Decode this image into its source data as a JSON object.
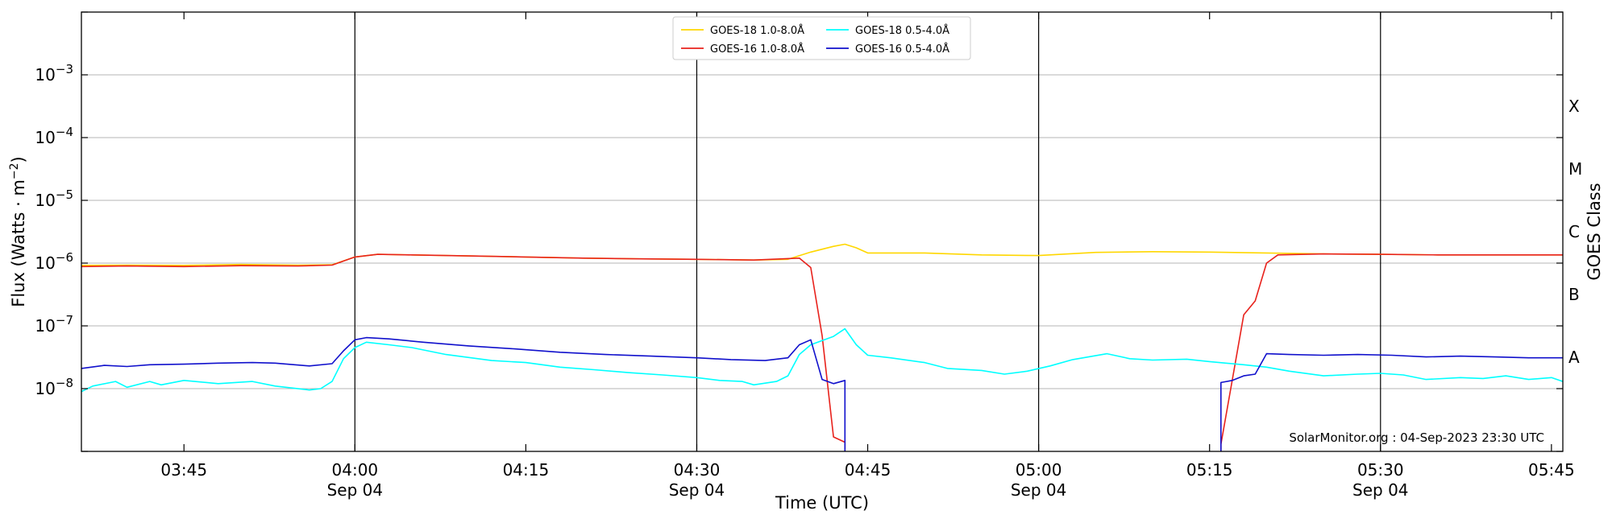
{
  "chart_data": {
    "type": "line",
    "xlabel": "Time (UTC)",
    "ylabel_main": "Flux (Watts · m",
    "ylabel_sup": "−2",
    "ylabel_close": ")",
    "right_label": "GOES Class",
    "credit": "SolarMonitor.org : 04-Sep-2023 23:30 UTC",
    "log_y": true,
    "grid": "horizontal at decades",
    "legend_position": "top-center",
    "x_range": [
      "03:36",
      "05:46"
    ],
    "y_range": [
      1e-09,
      0.01
    ],
    "x_ticks": [
      {
        "t": "03:45",
        "label": "03:45",
        "date": ""
      },
      {
        "t": "04:00",
        "label": "04:00",
        "date": "Sep 04"
      },
      {
        "t": "04:15",
        "label": "04:15",
        "date": ""
      },
      {
        "t": "04:30",
        "label": "04:30",
        "date": "Sep 04"
      },
      {
        "t": "04:45",
        "label": "04:45",
        "date": ""
      },
      {
        "t": "05:00",
        "label": "05:00",
        "date": "Sep 04"
      },
      {
        "t": "05:15",
        "label": "05:15",
        "date": ""
      },
      {
        "t": "05:30",
        "label": "05:30",
        "date": "Sep 04"
      },
      {
        "t": "05:45",
        "label": "05:45",
        "date": ""
      }
    ],
    "vertical_lines": [
      "04:00",
      "04:30",
      "05:00",
      "05:30"
    ],
    "y_ticks": [
      {
        "exp": -8,
        "label": "10",
        "sup": "−8"
      },
      {
        "exp": -7,
        "label": "10",
        "sup": "−7"
      },
      {
        "exp": -6,
        "label": "10",
        "sup": "−6"
      },
      {
        "exp": -5,
        "label": "10",
        "sup": "−5"
      },
      {
        "exp": -4,
        "label": "10",
        "sup": "−4"
      },
      {
        "exp": -3,
        "label": "10",
        "sup": "−3"
      }
    ],
    "classes": [
      {
        "label": "A",
        "exp": -7.5
      },
      {
        "label": "B",
        "exp": -6.5
      },
      {
        "label": "C",
        "exp": -5.5
      },
      {
        "label": "M",
        "exp": -4.5
      },
      {
        "label": "X",
        "exp": -3.5
      }
    ],
    "series": [
      {
        "name": "GOES-18 1.0-8.0Å",
        "color": "#ffd700",
        "points": [
          [
            "03:36",
            9.2e-07
          ],
          [
            "03:40",
            9.3e-07
          ],
          [
            "03:45",
            9.2e-07
          ],
          [
            "03:50",
            9.5e-07
          ],
          [
            "03:55",
            9.3e-07
          ],
          [
            "03:58",
            9.4e-07
          ],
          [
            "04:00",
            1.25e-06
          ],
          [
            "04:02",
            1.38e-06
          ],
          [
            "04:05",
            1.35e-06
          ],
          [
            "04:10",
            1.3e-06
          ],
          [
            "04:15",
            1.25e-06
          ],
          [
            "04:20",
            1.2e-06
          ],
          [
            "04:25",
            1.17e-06
          ],
          [
            "04:30",
            1.15e-06
          ],
          [
            "04:35",
            1.12e-06
          ],
          [
            "04:38",
            1.15e-06
          ],
          [
            "04:40",
            1.5e-06
          ],
          [
            "04:42",
            1.85e-06
          ],
          [
            "04:43",
            2e-06
          ],
          [
            "04:44",
            1.75e-06
          ],
          [
            "04:45",
            1.45e-06
          ],
          [
            "04:50",
            1.45e-06
          ],
          [
            "04:55",
            1.35e-06
          ],
          [
            "05:00",
            1.32e-06
          ],
          [
            "05:05",
            1.48e-06
          ],
          [
            "05:10",
            1.52e-06
          ],
          [
            "05:15",
            1.5e-06
          ],
          [
            "05:20",
            1.45e-06
          ],
          [
            "05:25",
            1.4e-06
          ],
          [
            "05:30",
            1.38e-06
          ],
          [
            "05:35",
            1.35e-06
          ],
          [
            "05:40",
            1.35e-06
          ],
          [
            "05:46",
            1.35e-06
          ]
        ]
      },
      {
        "name": "GOES-16 1.0-8.0Å",
        "color": "#e8221c",
        "points": [
          [
            "03:36",
            8.8e-07
          ],
          [
            "03:40",
            9e-07
          ],
          [
            "03:45",
            8.8e-07
          ],
          [
            "03:50",
            9.1e-07
          ],
          [
            "03:55",
            9e-07
          ],
          [
            "03:58",
            9.3e-07
          ],
          [
            "04:00",
            1.25e-06
          ],
          [
            "04:02",
            1.38e-06
          ],
          [
            "04:05",
            1.35e-06
          ],
          [
            "04:10",
            1.3e-06
          ],
          [
            "04:15",
            1.25e-06
          ],
          [
            "04:20",
            1.2e-06
          ],
          [
            "04:25",
            1.17e-06
          ],
          [
            "04:30",
            1.15e-06
          ],
          [
            "04:35",
            1.12e-06
          ],
          [
            "04:39",
            1.2e-06
          ],
          [
            "04:40",
            8.5e-07
          ],
          [
            "04:41",
            7e-08
          ],
          [
            "04:42",
            1.7e-09
          ],
          [
            "04:43",
            1.4e-09
          ],
          [
            "04:43",
            1e-09
          ],
          null,
          [
            "05:16",
            1e-09
          ],
          [
            "05:16",
            1.3e-09
          ],
          [
            "05:17",
            1.4e-08
          ],
          [
            "05:18",
            1.5e-07
          ],
          [
            "05:19",
            2.5e-07
          ],
          [
            "05:20",
            1e-06
          ],
          [
            "05:21",
            1.35e-06
          ],
          [
            "05:25",
            1.4e-06
          ],
          [
            "05:30",
            1.38e-06
          ],
          [
            "05:35",
            1.35e-06
          ],
          [
            "05:40",
            1.35e-06
          ],
          [
            "05:46",
            1.35e-06
          ]
        ]
      },
      {
        "name": "GOES-18 0.5-4.0Å",
        "color": "#00ffff",
        "points": [
          [
            "03:36",
            9e-09
          ],
          [
            "03:37",
            1.1e-08
          ],
          [
            "03:39",
            1.3e-08
          ],
          [
            "03:40",
            1.05e-08
          ],
          [
            "03:42",
            1.3e-08
          ],
          [
            "03:43",
            1.15e-08
          ],
          [
            "03:45",
            1.35e-08
          ],
          [
            "03:48",
            1.2e-08
          ],
          [
            "03:51",
            1.3e-08
          ],
          [
            "03:53",
            1.1e-08
          ],
          [
            "03:56",
            9.5e-09
          ],
          [
            "03:57",
            1e-08
          ],
          [
            "03:58",
            1.3e-08
          ],
          [
            "03:59",
            3e-08
          ],
          [
            "04:00",
            4.5e-08
          ],
          [
            "04:01",
            5.5e-08
          ],
          [
            "04:03",
            5e-08
          ],
          [
            "04:05",
            4.5e-08
          ],
          [
            "04:08",
            3.5e-08
          ],
          [
            "04:12",
            2.8e-08
          ],
          [
            "04:15",
            2.6e-08
          ],
          [
            "04:18",
            2.2e-08
          ],
          [
            "04:21",
            2e-08
          ],
          [
            "04:24",
            1.8e-08
          ],
          [
            "04:27",
            1.65e-08
          ],
          [
            "04:30",
            1.5e-08
          ],
          [
            "04:32",
            1.35e-08
          ],
          [
            "04:34",
            1.3e-08
          ],
          [
            "04:35",
            1.15e-08
          ],
          [
            "04:37",
            1.3e-08
          ],
          [
            "04:38",
            1.6e-08
          ],
          [
            "04:39",
            3.5e-08
          ],
          [
            "04:40",
            5e-08
          ],
          [
            "04:42",
            6.8e-08
          ],
          [
            "04:43",
            9e-08
          ],
          [
            "04:44",
            5e-08
          ],
          [
            "04:45",
            3.4e-08
          ],
          [
            "04:47",
            3.1e-08
          ],
          [
            "04:50",
            2.6e-08
          ],
          [
            "04:52",
            2.1e-08
          ],
          [
            "04:55",
            1.95e-08
          ],
          [
            "04:57",
            1.7e-08
          ],
          [
            "04:59",
            1.9e-08
          ],
          [
            "05:01",
            2.3e-08
          ],
          [
            "05:03",
            2.9e-08
          ],
          [
            "05:06",
            3.6e-08
          ],
          [
            "05:08",
            3e-08
          ],
          [
            "05:10",
            2.85e-08
          ],
          [
            "05:13",
            2.95e-08
          ],
          [
            "05:15",
            2.7e-08
          ],
          [
            "05:18",
            2.4e-08
          ],
          [
            "05:20",
            2.2e-08
          ],
          [
            "05:22",
            1.9e-08
          ],
          [
            "05:25",
            1.6e-08
          ],
          [
            "05:28",
            1.7e-08
          ],
          [
            "05:30",
            1.75e-08
          ],
          [
            "05:32",
            1.65e-08
          ],
          [
            "05:34",
            1.4e-08
          ],
          [
            "05:37",
            1.5e-08
          ],
          [
            "05:39",
            1.45e-08
          ],
          [
            "05:41",
            1.6e-08
          ],
          [
            "05:43",
            1.4e-08
          ],
          [
            "05:45",
            1.5e-08
          ],
          [
            "05:46",
            1.3e-08
          ]
        ]
      },
      {
        "name": "GOES-16 0.5-4.0Å",
        "color": "#1010cc",
        "points": [
          [
            "03:36",
            2.1e-08
          ],
          [
            "03:38",
            2.35e-08
          ],
          [
            "03:40",
            2.25e-08
          ],
          [
            "03:42",
            2.4e-08
          ],
          [
            "03:45",
            2.45e-08
          ],
          [
            "03:48",
            2.55e-08
          ],
          [
            "03:51",
            2.6e-08
          ],
          [
            "03:53",
            2.55e-08
          ],
          [
            "03:56",
            2.3e-08
          ],
          [
            "03:58",
            2.5e-08
          ],
          [
            "03:59",
            4e-08
          ],
          [
            "04:00",
            6e-08
          ],
          [
            "04:01",
            6.5e-08
          ],
          [
            "04:03",
            6.2e-08
          ],
          [
            "04:06",
            5.5e-08
          ],
          [
            "04:10",
            4.8e-08
          ],
          [
            "04:14",
            4.3e-08
          ],
          [
            "04:18",
            3.8e-08
          ],
          [
            "04:22",
            3.5e-08
          ],
          [
            "04:26",
            3.3e-08
          ],
          [
            "04:30",
            3.1e-08
          ],
          [
            "04:33",
            2.9e-08
          ],
          [
            "04:36",
            2.8e-08
          ],
          [
            "04:38",
            3.1e-08
          ],
          [
            "04:39",
            5e-08
          ],
          [
            "04:40",
            6e-08
          ],
          [
            "04:41",
            1.4e-08
          ],
          [
            "04:42",
            1.2e-08
          ],
          [
            "04:43",
            1.35e-08
          ],
          [
            "04:43",
            1e-09
          ],
          null,
          [
            "05:16",
            1e-09
          ],
          [
            "05:16",
            1.25e-08
          ],
          [
            "05:17",
            1.35e-08
          ],
          [
            "05:18",
            1.6e-08
          ],
          [
            "05:19",
            1.7e-08
          ],
          [
            "05:20",
            3.6e-08
          ],
          [
            "05:22",
            3.5e-08
          ],
          [
            "05:25",
            3.4e-08
          ],
          [
            "05:28",
            3.5e-08
          ],
          [
            "05:31",
            3.4e-08
          ],
          [
            "05:34",
            3.2e-08
          ],
          [
            "05:37",
            3.3e-08
          ],
          [
            "05:40",
            3.2e-08
          ],
          [
            "05:43",
            3.1e-08
          ],
          [
            "05:46",
            3.1e-08
          ]
        ]
      }
    ]
  }
}
